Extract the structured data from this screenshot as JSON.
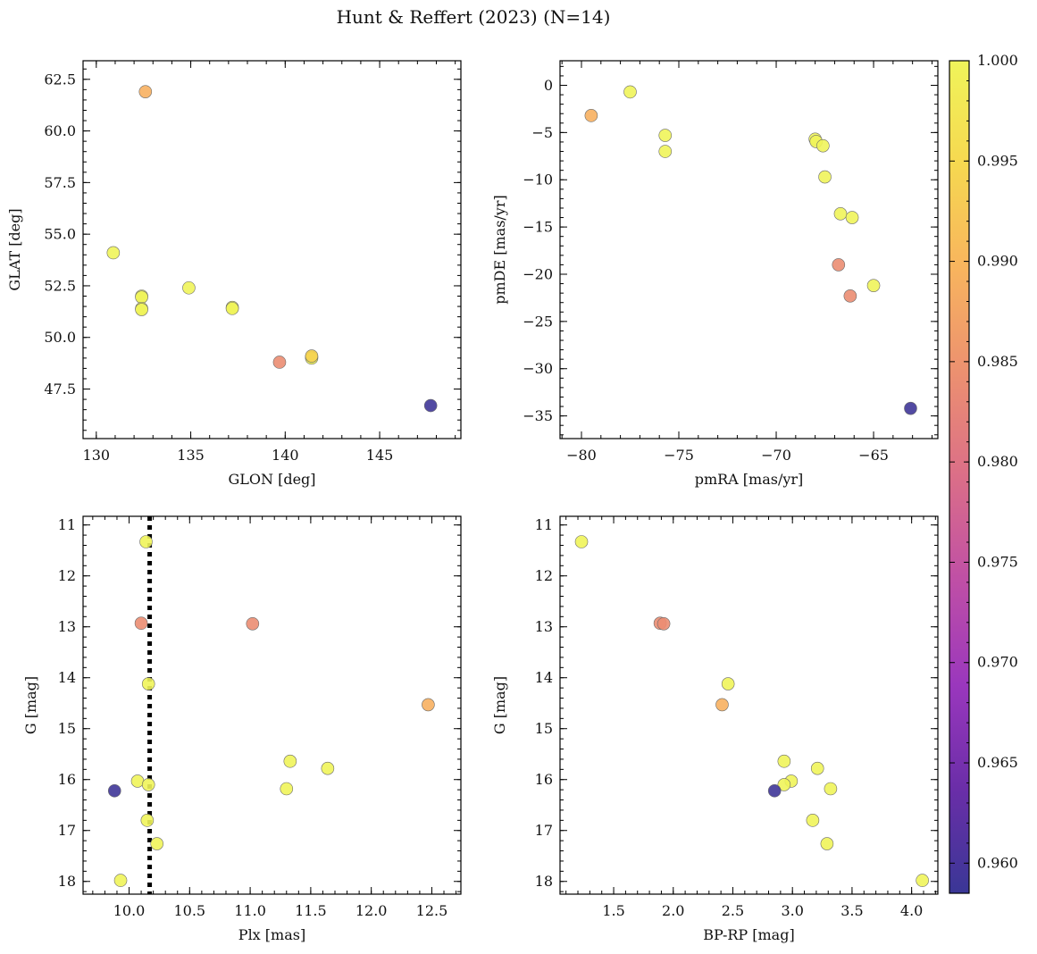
{
  "chart_data": {
    "title": "Hunt & Reffert (2023) (N=14)",
    "colorbar": {
      "min": 0.9585,
      "max": 1.0,
      "ticks": [
        0.96,
        0.965,
        0.97,
        0.975,
        0.98,
        0.985,
        0.99,
        0.995,
        1.0
      ],
      "tick_labels": [
        "0.960",
        "0.965",
        "0.970",
        "0.975",
        "0.980",
        "0.985",
        "0.990",
        "0.995",
        "1.000"
      ],
      "colormap": "plasma",
      "colors": [
        "#3a3796",
        "#6a2ea8",
        "#9a37bd",
        "#bf4fa6",
        "#db6e88",
        "#ec9070",
        "#f8b45e",
        "#f6d850",
        "#f0f45a"
      ]
    },
    "panels": [
      {
        "type": "scatter",
        "xlabel": "GLON [deg]",
        "ylabel": "GLAT [deg]",
        "xlim": [
          129.3,
          149.3
        ],
        "ylim": [
          45.1,
          63.4
        ],
        "invert_y": false,
        "xticks": [
          130,
          135,
          140,
          145
        ],
        "xtick_labels": [
          "130",
          "135",
          "140",
          "145"
        ],
        "yticks": [
          47.5,
          50.0,
          52.5,
          55.0,
          57.5,
          60.0,
          62.5
        ],
        "ytick_labels": [
          "47.5",
          "50.0",
          "52.5",
          "55.0",
          "57.5",
          "60.0",
          "62.5"
        ],
        "x_minor_step": 1,
        "y_minor_step": 0.5,
        "points": [
          {
            "x": 132.6,
            "y": 61.9,
            "c": 0.989
          },
          {
            "x": 130.9,
            "y": 54.1,
            "c": 1.0
          },
          {
            "x": 132.4,
            "y": 52.0,
            "c": 1.0
          },
          {
            "x": 132.4,
            "y": 51.95,
            "c": 1.0
          },
          {
            "x": 132.4,
            "y": 51.4,
            "c": 1.0
          },
          {
            "x": 132.4,
            "y": 51.35,
            "c": 1.0
          },
          {
            "x": 134.9,
            "y": 52.4,
            "c": 1.0
          },
          {
            "x": 137.2,
            "y": 51.45,
            "c": 1.0
          },
          {
            "x": 137.2,
            "y": 51.4,
            "c": 1.0
          },
          {
            "x": 139.7,
            "y": 48.8,
            "c": 0.984
          },
          {
            "x": 141.4,
            "y": 49.05,
            "c": 1.0
          },
          {
            "x": 141.4,
            "y": 49.0,
            "c": 1.0
          },
          {
            "x": 141.4,
            "y": 49.1,
            "c": 0.994
          },
          {
            "x": 147.7,
            "y": 46.7,
            "c": 0.959
          }
        ]
      },
      {
        "type": "scatter",
        "xlabel": "pmRA [mas/yr]",
        "ylabel": "pmDE [mas/yr]",
        "xlim": [
          -81.1,
          -61.7
        ],
        "ylim": [
          -37.4,
          2.6
        ],
        "invert_y": false,
        "xticks": [
          -80,
          -75,
          -70,
          -65
        ],
        "xtick_labels": [
          "−80",
          "−75",
          "−70",
          "−65"
        ],
        "yticks": [
          -35,
          -30,
          -25,
          -20,
          -15,
          -10,
          -5,
          0
        ],
        "ytick_labels": [
          "−35",
          "−30",
          "−25",
          "−20",
          "−15",
          "−10",
          "−5",
          "0"
        ],
        "x_minor_step": 1,
        "y_minor_step": 1,
        "points": [
          {
            "x": -79.5,
            "y": -3.2,
            "c": 0.989
          },
          {
            "x": -77.5,
            "y": -0.7,
            "c": 1.0
          },
          {
            "x": -75.7,
            "y": -5.3,
            "c": 1.0
          },
          {
            "x": -75.7,
            "y": -7.0,
            "c": 1.0
          },
          {
            "x": -68.0,
            "y": -5.7,
            "c": 1.0
          },
          {
            "x": -67.95,
            "y": -5.95,
            "c": 1.0
          },
          {
            "x": -67.6,
            "y": -6.4,
            "c": 1.0
          },
          {
            "x": -67.5,
            "y": -9.7,
            "c": 1.0
          },
          {
            "x": -66.7,
            "y": -13.6,
            "c": 1.0
          },
          {
            "x": -66.1,
            "y": -14.0,
            "c": 1.0
          },
          {
            "x": -66.8,
            "y": -19.0,
            "c": 0.984
          },
          {
            "x": -66.2,
            "y": -22.3,
            "c": 0.984
          },
          {
            "x": -65.0,
            "y": -21.2,
            "c": 1.0
          },
          {
            "x": -63.1,
            "y": -34.2,
            "c": 0.959
          }
        ]
      },
      {
        "type": "scatter",
        "xlabel": "Plx [mas]",
        "ylabel": "G [mag]",
        "xlim": [
          9.62,
          12.74
        ],
        "ylim": [
          10.83,
          18.25
        ],
        "invert_y": true,
        "xticks": [
          10.0,
          10.5,
          11.0,
          11.5,
          12.0,
          12.5
        ],
        "xtick_labels": [
          "10.0",
          "10.5",
          "11.0",
          "11.5",
          "12.0",
          "12.5"
        ],
        "yticks": [
          11,
          12,
          13,
          14,
          15,
          16,
          17,
          18
        ],
        "ytick_labels": [
          "11",
          "12",
          "13",
          "14",
          "15",
          "16",
          "17",
          "18"
        ],
        "x_minor_step": 0.1,
        "y_minor_step": 0.2,
        "vline": {
          "x": 10.17,
          "style": "dotted",
          "color": "#000000"
        },
        "points": [
          {
            "x": 10.14,
            "y": 11.33,
            "c": 1.0
          },
          {
            "x": 10.1,
            "y": 12.93,
            "c": 0.984
          },
          {
            "x": 11.02,
            "y": 12.94,
            "c": 0.984
          },
          {
            "x": 10.16,
            "y": 14.12,
            "c": 1.0
          },
          {
            "x": 12.47,
            "y": 14.53,
            "c": 0.989
          },
          {
            "x": 11.33,
            "y": 15.64,
            "c": 1.0
          },
          {
            "x": 11.64,
            "y": 15.78,
            "c": 1.0
          },
          {
            "x": 10.07,
            "y": 16.03,
            "c": 1.0
          },
          {
            "x": 10.16,
            "y": 16.1,
            "c": 1.0
          },
          {
            "x": 11.3,
            "y": 16.18,
            "c": 1.0
          },
          {
            "x": 9.88,
            "y": 16.22,
            "c": 0.959
          },
          {
            "x": 10.15,
            "y": 16.8,
            "c": 1.0
          },
          {
            "x": 10.23,
            "y": 17.26,
            "c": 1.0
          },
          {
            "x": 9.93,
            "y": 17.98,
            "c": 1.0
          }
        ]
      },
      {
        "type": "scatter",
        "xlabel": "BP-RP [mag]",
        "ylabel": "G [mag]",
        "xlim": [
          1.05,
          4.22
        ],
        "ylim": [
          10.83,
          18.25
        ],
        "invert_y": true,
        "xticks": [
          1.5,
          2.0,
          2.5,
          3.0,
          3.5,
          4.0
        ],
        "xtick_labels": [
          "1.5",
          "2.0",
          "2.5",
          "3.0",
          "3.5",
          "4.0"
        ],
        "yticks": [
          11,
          12,
          13,
          14,
          15,
          16,
          17,
          18
        ],
        "ytick_labels": [
          "11",
          "12",
          "13",
          "14",
          "15",
          "16",
          "17",
          "18"
        ],
        "x_minor_step": 0.1,
        "y_minor_step": 0.2,
        "points": [
          {
            "x": 1.23,
            "y": 11.33,
            "c": 1.0
          },
          {
            "x": 1.89,
            "y": 12.93,
            "c": 0.984
          },
          {
            "x": 1.92,
            "y": 12.94,
            "c": 0.984
          },
          {
            "x": 2.46,
            "y": 14.12,
            "c": 1.0
          },
          {
            "x": 2.41,
            "y": 14.53,
            "c": 0.989
          },
          {
            "x": 2.93,
            "y": 15.64,
            "c": 1.0
          },
          {
            "x": 3.21,
            "y": 15.78,
            "c": 1.0
          },
          {
            "x": 2.99,
            "y": 16.03,
            "c": 1.0
          },
          {
            "x": 2.93,
            "y": 16.1,
            "c": 1.0
          },
          {
            "x": 3.32,
            "y": 16.18,
            "c": 1.0
          },
          {
            "x": 2.85,
            "y": 16.22,
            "c": 0.959
          },
          {
            "x": 3.17,
            "y": 16.8,
            "c": 1.0
          },
          {
            "x": 3.29,
            "y": 17.26,
            "c": 1.0
          },
          {
            "x": 4.09,
            "y": 17.98,
            "c": 1.0
          }
        ]
      }
    ]
  }
}
